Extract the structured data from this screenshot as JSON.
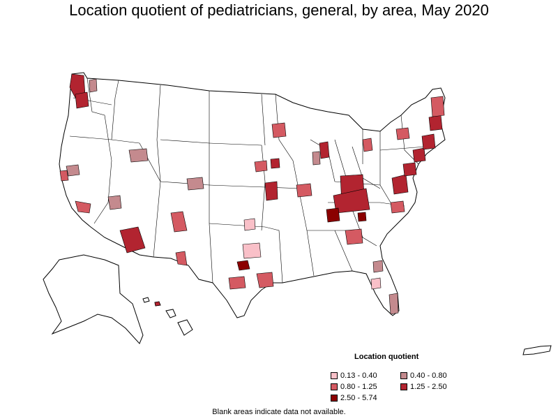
{
  "title": "Location quotient of pediatricians, general, by area, May 2020",
  "legend": {
    "title": "Location quotient",
    "items": [
      {
        "label": "0.13 - 0.40",
        "color": "#f9c0c8"
      },
      {
        "label": "0.40 - 0.80",
        "color": "#c48a8e"
      },
      {
        "label": "0.80 - 1.25",
        "color": "#d45a62"
      },
      {
        "label": "1.25 - 2.50",
        "color": "#b22430"
      },
      {
        "label": "2.50 - 5.74",
        "color": "#8b0000"
      }
    ]
  },
  "note": "Blank areas indicate data not available.",
  "map_regions": [
    {
      "name": "seattle",
      "level": 4
    },
    {
      "name": "portland",
      "level": 4
    },
    {
      "name": "spokane",
      "level": 2
    },
    {
      "name": "bay-area",
      "level": 2
    },
    {
      "name": "central-valley",
      "level": 3
    },
    {
      "name": "los-angeles",
      "level": 3
    },
    {
      "name": "las-vegas",
      "level": 2
    },
    {
      "name": "salt-lake",
      "level": 2
    },
    {
      "name": "denver",
      "level": 2
    },
    {
      "name": "albuquerque",
      "level": 3
    },
    {
      "name": "phoenix",
      "level": 4
    },
    {
      "name": "el-paso",
      "level": 3
    },
    {
      "name": "oklahoma-city",
      "level": 1
    },
    {
      "name": "dallas",
      "level": 1
    },
    {
      "name": "austin",
      "level": 5
    },
    {
      "name": "san-antonio",
      "level": 3
    },
    {
      "name": "houston",
      "level": 3
    },
    {
      "name": "omaha",
      "level": 3
    },
    {
      "name": "kansas-city",
      "level": 4
    },
    {
      "name": "minneapolis",
      "level": 3
    },
    {
      "name": "iowa",
      "level": 4
    },
    {
      "name": "st-louis",
      "level": 3
    },
    {
      "name": "chicago",
      "level": 4
    },
    {
      "name": "milwaukee",
      "level": 2
    },
    {
      "name": "detroit",
      "level": 3
    },
    {
      "name": "ohio",
      "level": 4
    },
    {
      "name": "kentucky",
      "level": 4
    },
    {
      "name": "nashville",
      "level": 5
    },
    {
      "name": "memphis",
      "level": 5
    },
    {
      "name": "atlanta",
      "level": 3
    },
    {
      "name": "north-carolina",
      "level": 3
    },
    {
      "name": "virginia",
      "level": 4
    },
    {
      "name": "washington-dc",
      "level": 4
    },
    {
      "name": "philadelphia",
      "level": 4
    },
    {
      "name": "new-york",
      "level": 4
    },
    {
      "name": "boston",
      "level": 4
    },
    {
      "name": "new-england",
      "level": 3
    },
    {
      "name": "upstate-ny",
      "level": 3
    },
    {
      "name": "jacksonville",
      "level": 2
    },
    {
      "name": "orlando",
      "level": 1
    },
    {
      "name": "miami",
      "level": 2
    },
    {
      "name": "hawaii",
      "level": 4
    }
  ]
}
